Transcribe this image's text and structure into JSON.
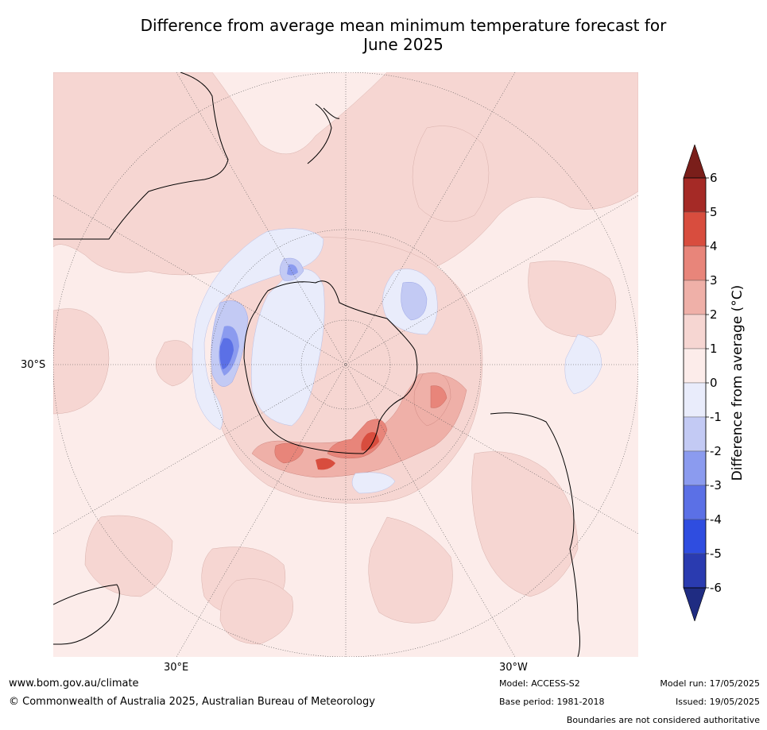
{
  "title_line1": "Difference from average mean minimum temperature forecast for",
  "title_line2": "June 2025",
  "axis_labels": {
    "lat_30s": "30°S",
    "lon_30e": "30°E",
    "lon_30w": "30°W"
  },
  "colorbar": {
    "label": "Difference from average (°C)",
    "ticks": [
      "6",
      "5",
      "4",
      "3",
      "2",
      "1",
      "0",
      "-1",
      "-2",
      "-3",
      "-4",
      "-5",
      "-6"
    ],
    "colors": [
      "#a52a26",
      "#d84d3e",
      "#e8857a",
      "#efb0a8",
      "#f6d6d2",
      "#fcecea",
      "#e9ecfb",
      "#c3caf4",
      "#8b9bef",
      "#5b70e6",
      "#2f4de0",
      "#2a3bb0"
    ],
    "over_color": "#7a1e1a",
    "under_color": "#1f2c82"
  },
  "footer": {
    "website": "www.bom.gov.au/climate",
    "copyright": "© Commonwealth of Australia 2025, Australian Bureau of Meteorology",
    "model": "Model: ACCESS-S2",
    "base_period": "Base period: 1981-2018",
    "model_run": "Model run: 17/05/2025",
    "issued": "Issued: 19/05/2025",
    "disclaimer": "Boundaries are not considered authoritative"
  }
}
